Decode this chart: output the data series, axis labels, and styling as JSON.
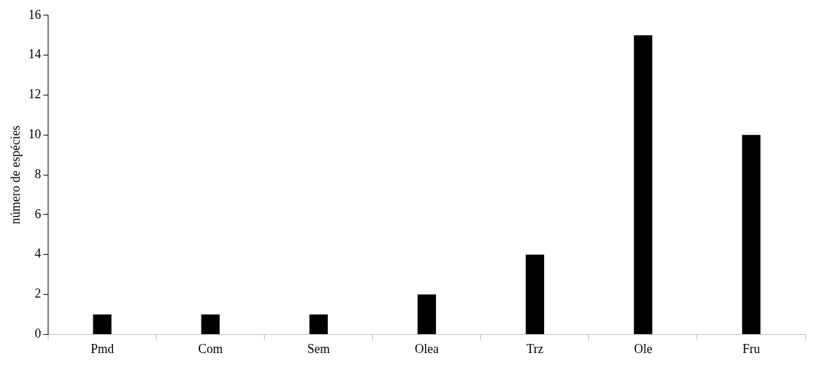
{
  "chart_data": {
    "type": "bar",
    "ylabel": "número de espécies",
    "categories": [
      "Pmd",
      "Com",
      "Sem",
      "Olea",
      "Trz",
      "Ole",
      "Fru"
    ],
    "values": [
      1,
      1,
      1,
      2,
      4,
      15,
      10
    ],
    "color": "#000000",
    "ylim": [
      0,
      16
    ],
    "yticks": [
      0,
      2,
      4,
      6,
      8,
      10,
      12,
      14,
      16
    ],
    "grid": false,
    "legend": false
  }
}
